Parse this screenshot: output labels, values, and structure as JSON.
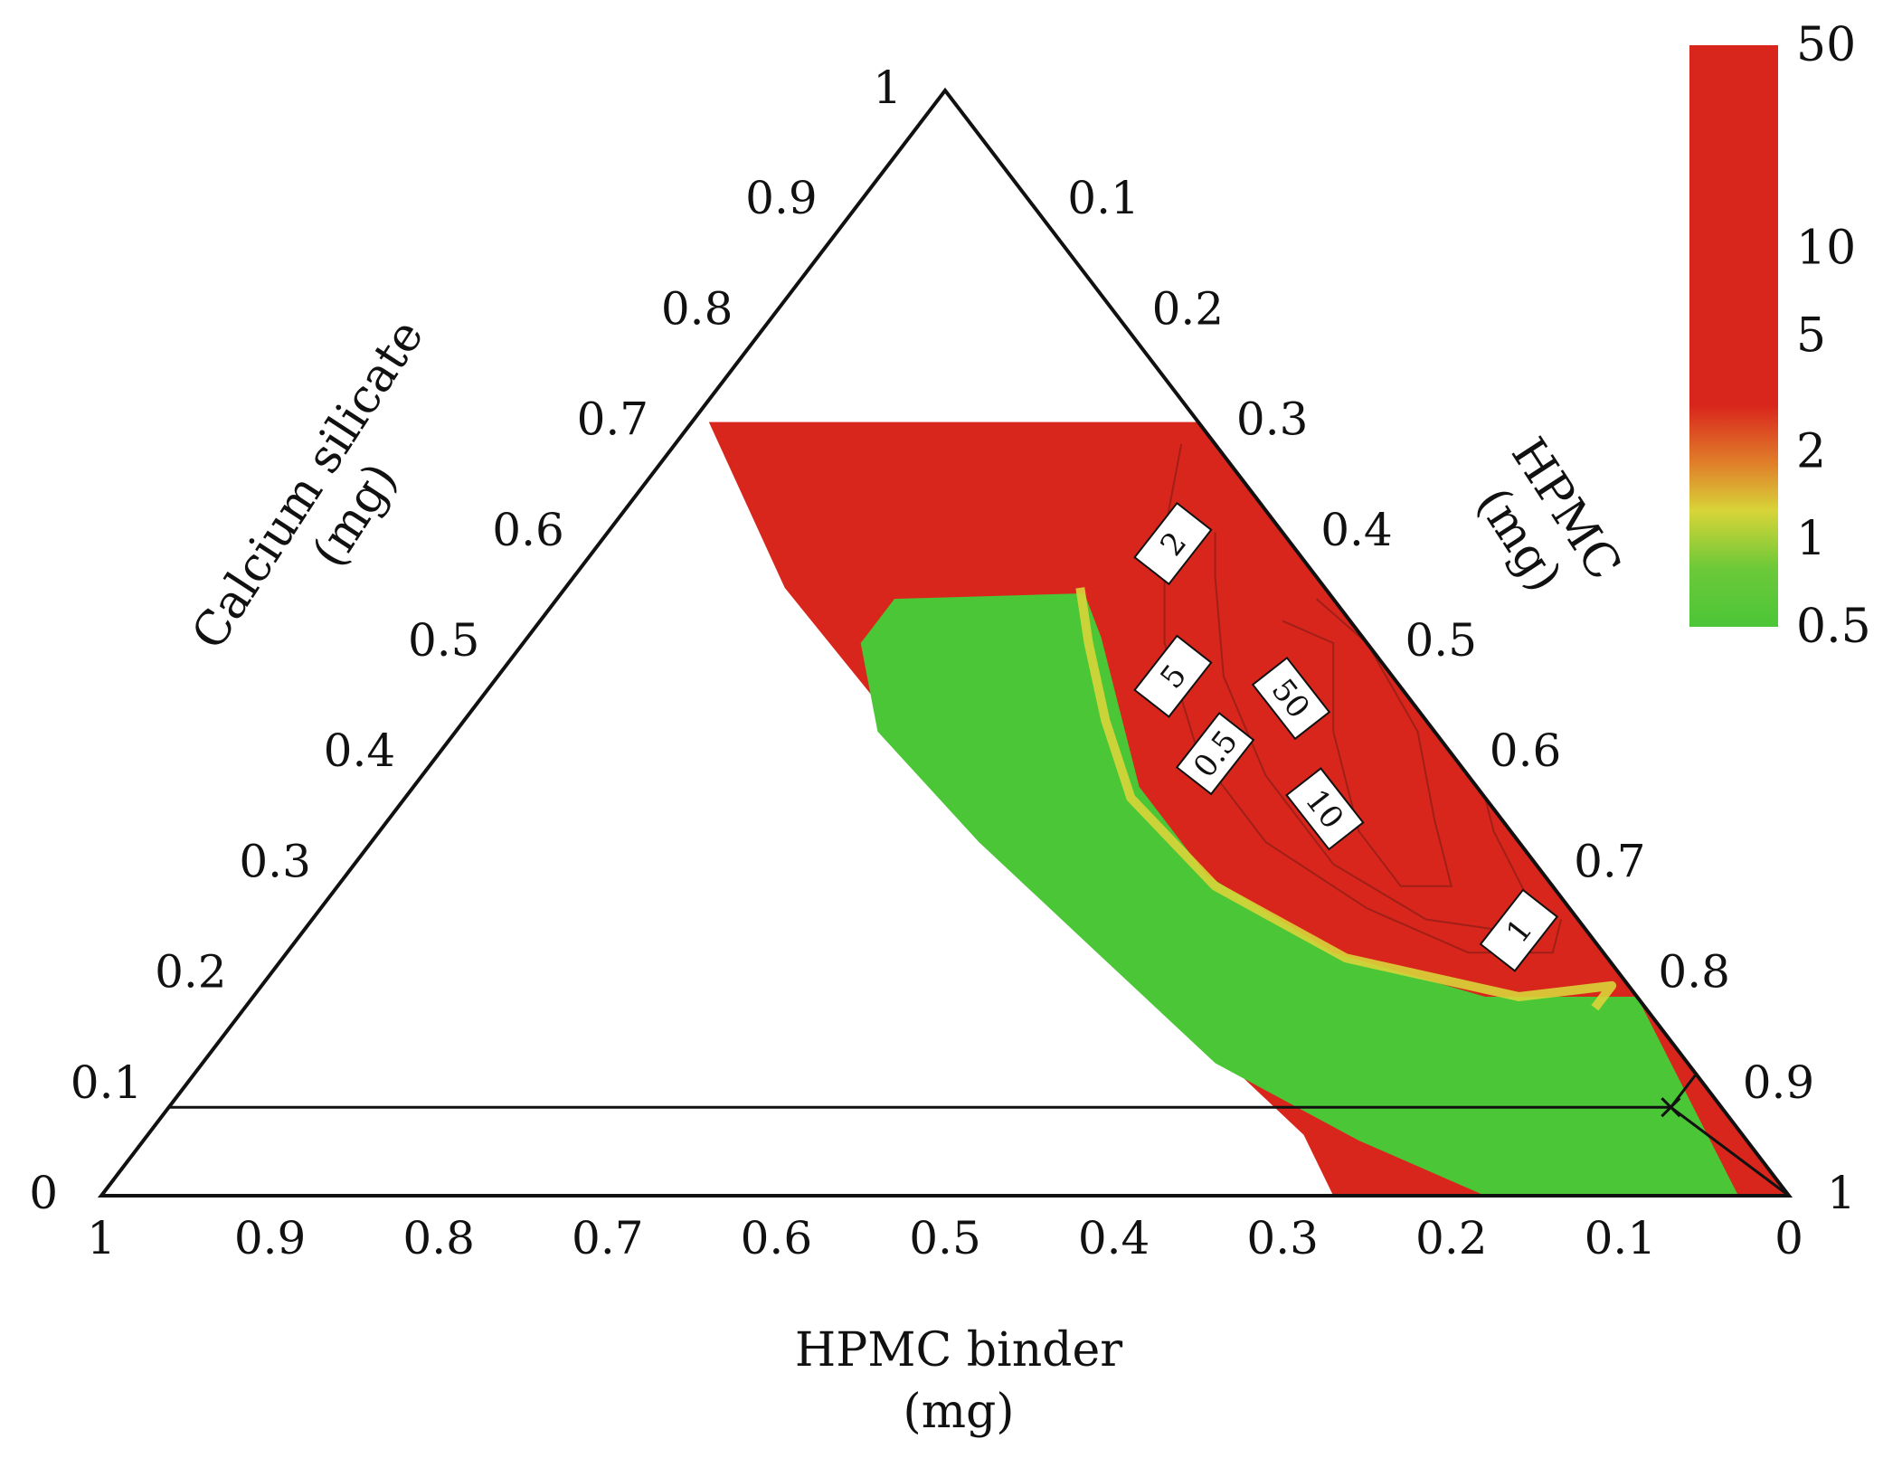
{
  "chart_data": {
    "type": "heatmap",
    "subtype": "ternary-contour",
    "title": "",
    "axes": {
      "top": {
        "label": [
          "Calcium silicate",
          "(mg)"
        ],
        "ticks": [
          "0",
          "0.1",
          "0.2",
          "0.3",
          "0.4",
          "0.5",
          "0.6",
          "0.7",
          "0.8",
          "0.9",
          "1"
        ]
      },
      "right": {
        "label": [
          "HPMC",
          "(mg)"
        ],
        "ticks": [
          "0.1",
          "0.2",
          "0.3",
          "0.4",
          "0.5",
          "0.6",
          "0.7",
          "0.8",
          "0.9",
          "1"
        ]
      },
      "bottom": {
        "label": [
          "HPMC binder",
          "(mg)"
        ],
        "ticks": [
          "1",
          "0.9",
          "0.8",
          "0.7",
          "0.6",
          "0.5",
          "0.4",
          "0.3",
          "0.2",
          "0.1",
          "0"
        ]
      }
    },
    "colorbar": {
      "scale": "log",
      "ticks": [
        "50",
        "10",
        "5",
        "2",
        "1",
        "0.5"
      ],
      "colors": {
        "low": "#4bc637",
        "mid": "#d8d438",
        "high": "#d9261c"
      }
    },
    "contour_labels": [
      "2",
      "5",
      "0.5",
      "50",
      "10",
      "1"
    ],
    "regions": {
      "feasible_top_limit": 0.7,
      "red_band_outer": [
        [
          0.7,
          0.3,
          0.0
        ],
        [
          0.0,
          0.3,
          0.7
        ]
      ],
      "green_valley": [
        [
          0.54,
          0.31,
          0.15
        ],
        [
          0.43,
          0.32,
          0.25
        ],
        [
          0.29,
          0.46,
          0.25
        ],
        [
          0.16,
          0.68,
          0.16
        ],
        [
          0.06,
          0.86,
          0.08
        ]
      ],
      "high_peak": [
        0.38,
        0.5,
        0.12
      ]
    },
    "marked_point": {
      "calcium_silicate": 0.08,
      "hpmc": 0.89,
      "hpmc_binder": 0.03
    }
  }
}
